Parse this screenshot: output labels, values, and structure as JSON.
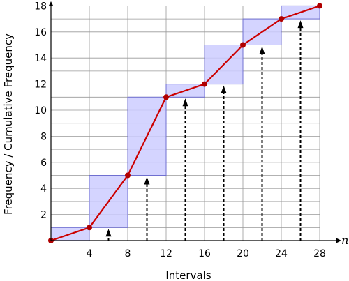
{
  "chart_data": {
    "type": "bar",
    "xlabel": "Intervals",
    "ylabel": "Frequency / Cumulative Frequency",
    "x_axis_symbol": "n",
    "xlim": [
      0,
      28
    ],
    "ylim": [
      0,
      18
    ],
    "grid": true,
    "x_ticks": [
      4,
      8,
      12,
      16,
      20,
      24,
      28
    ],
    "y_ticks": [
      2,
      4,
      6,
      8,
      10,
      12,
      14,
      16,
      18
    ],
    "histogram_bars": [
      {
        "x_start": 0,
        "x_end": 4,
        "bottom": 0,
        "top": 1
      },
      {
        "x_start": 4,
        "x_end": 8,
        "bottom": 1,
        "top": 5
      },
      {
        "x_start": 8,
        "x_end": 12,
        "bottom": 5,
        "top": 11
      },
      {
        "x_start": 12,
        "x_end": 16,
        "bottom": 11,
        "top": 12
      },
      {
        "x_start": 16,
        "x_end": 20,
        "bottom": 12,
        "top": 15
      },
      {
        "x_start": 20,
        "x_end": 24,
        "bottom": 15,
        "top": 17
      },
      {
        "x_start": 24,
        "x_end": 28,
        "bottom": 17,
        "top": 18
      }
    ],
    "cumulative_line": {
      "x": [
        0,
        4,
        8,
        12,
        16,
        20,
        24,
        28
      ],
      "y": [
        0,
        1,
        5,
        11,
        12,
        15,
        17,
        18
      ]
    },
    "arrows": [
      {
        "x": 6,
        "to": 1
      },
      {
        "x": 10,
        "to": 5
      },
      {
        "x": 14,
        "to": 11
      },
      {
        "x": 18,
        "to": 12
      },
      {
        "x": 22,
        "to": 15
      },
      {
        "x": 26,
        "to": 17
      }
    ],
    "colors": {
      "bar_fill": "#ccccff",
      "bar_stroke": "#6f6fd0",
      "line": "#cc0000",
      "marker": "#b00000",
      "grid": "#999999",
      "arrow": "#000000"
    }
  }
}
